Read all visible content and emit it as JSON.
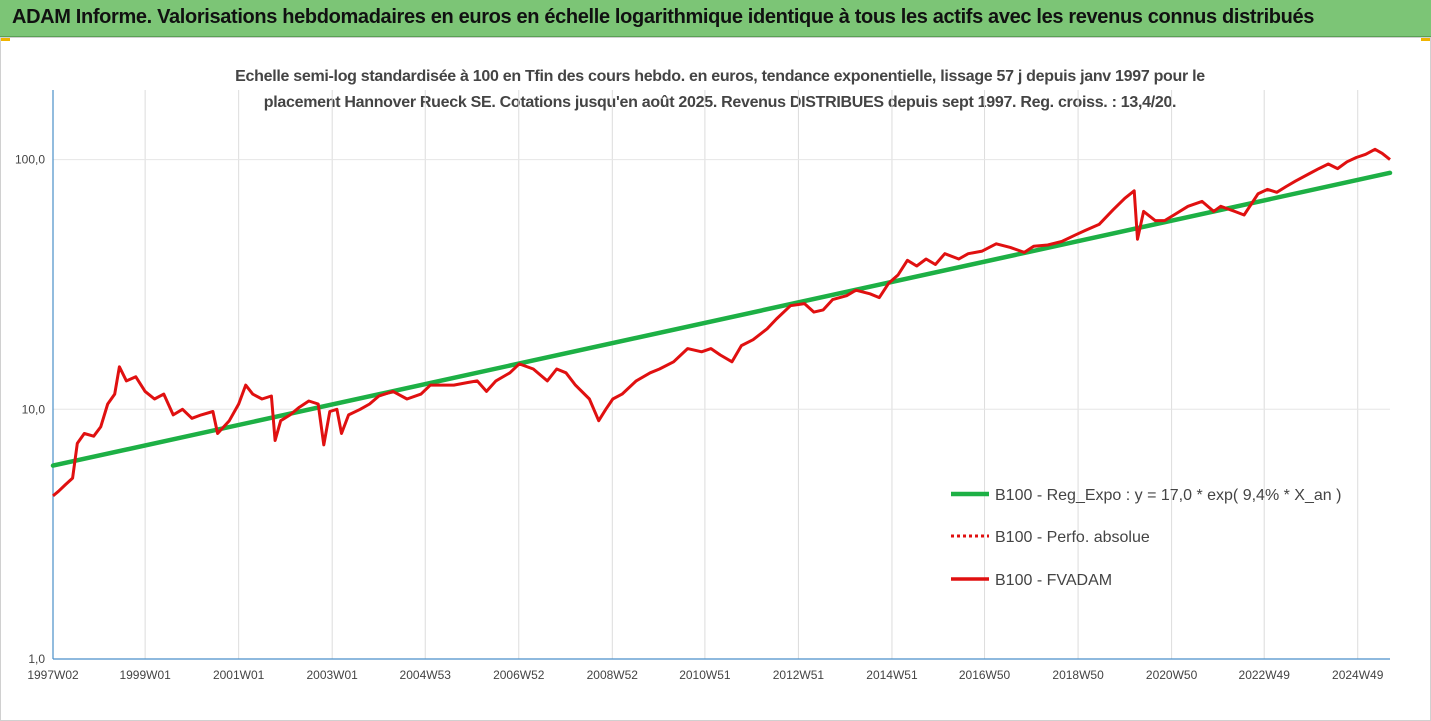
{
  "header": {
    "title": "ADAM Informe. Valorisations hebdomadaires en euros en échelle logarithmique identique à tous les actifs avec les revenus connus distribués"
  },
  "chart_data": {
    "type": "line",
    "title": "Echelle semi-log standardisée à 100 en Tfin des cours hebdo. en euros, tendance exponentielle, lissage 57 j depuis janv 1997 pour le placement Hannover Rueck SE. Cotations jusqu'en août 2025. Revenus DISTRIBUES depuis sept 1997. Reg. croiss. : 13,4/20.",
    "title_lines": [
      "Echelle semi-log standardisée à 100 en Tfin des cours hebdo. en euros, tendance exponentielle, lissage 57 j depuis janv 1997 pour le",
      "placement Hannover Rueck SE. Cotations jusqu'en août 2025. Revenus DISTRIBUES depuis sept 1997. Reg. croiss. : 13,4/20."
    ],
    "y_scale": "log",
    "ylim": [
      1,
      190
    ],
    "xlim": [
      1997.03,
      2025.62
    ],
    "y_ticks": [
      {
        "value": 1,
        "label": "1,0"
      },
      {
        "value": 10,
        "label": "10,0"
      },
      {
        "value": 100,
        "label": "100,0"
      }
    ],
    "x_ticks": [
      {
        "value": 1997.03,
        "label": "1997W02"
      },
      {
        "value": 1999.0,
        "label": "1999W01"
      },
      {
        "value": 2001.0,
        "label": "2001W01"
      },
      {
        "value": 2003.0,
        "label": "2003W01"
      },
      {
        "value": 2004.99,
        "label": "2004W53"
      },
      {
        "value": 2006.99,
        "label": "2006W52"
      },
      {
        "value": 2008.99,
        "label": "2008W52"
      },
      {
        "value": 2010.97,
        "label": "2010W51"
      },
      {
        "value": 2012.97,
        "label": "2012W51"
      },
      {
        "value": 2014.97,
        "label": "2014W51"
      },
      {
        "value": 2016.95,
        "label": "2016W50"
      },
      {
        "value": 2018.95,
        "label": "2018W50"
      },
      {
        "value": 2020.95,
        "label": "2020W50"
      },
      {
        "value": 2022.93,
        "label": "2022W49"
      },
      {
        "value": 2024.93,
        "label": "2024W49"
      }
    ],
    "grid": "vertical",
    "legend_position": "right",
    "colors": {
      "trend": "#1db045",
      "perf": "#e01010",
      "fvadam": "#e01010"
    },
    "series": [
      {
        "name": "B100 - Reg_Expo : y = 17,0 * exp( 9,4% *  X_an )",
        "style": "solid-green",
        "points": [
          [
            1997.03,
            5.95
          ],
          [
            2025.62,
            88.5
          ]
        ]
      },
      {
        "name": "B100 - Perfo. absolue",
        "style": "dotted-red",
        "points": []
      },
      {
        "name": "B100 - FVADAM",
        "style": "solid-red",
        "points": [
          [
            1997.03,
            4.5
          ],
          [
            1997.15,
            4.7
          ],
          [
            1997.3,
            5.0
          ],
          [
            1997.45,
            5.3
          ],
          [
            1997.55,
            7.3
          ],
          [
            1997.7,
            8.0
          ],
          [
            1997.9,
            7.8
          ],
          [
            1998.05,
            8.5
          ],
          [
            1998.2,
            10.5
          ],
          [
            1998.35,
            11.5
          ],
          [
            1998.45,
            14.8
          ],
          [
            1998.6,
            13.0
          ],
          [
            1998.8,
            13.5
          ],
          [
            1999.0,
            11.8
          ],
          [
            1999.2,
            11.0
          ],
          [
            1999.4,
            11.5
          ],
          [
            1999.6,
            9.5
          ],
          [
            1999.8,
            10.0
          ],
          [
            2000.0,
            9.2
          ],
          [
            2000.2,
            9.5
          ],
          [
            2000.45,
            9.8
          ],
          [
            2000.55,
            8.0
          ],
          [
            2000.8,
            9.0
          ],
          [
            2001.0,
            10.5
          ],
          [
            2001.15,
            12.5
          ],
          [
            2001.3,
            11.5
          ],
          [
            2001.5,
            11.0
          ],
          [
            2001.7,
            11.3
          ],
          [
            2001.78,
            7.5
          ],
          [
            2001.9,
            9.0
          ],
          [
            2002.1,
            9.5
          ],
          [
            2002.3,
            10.2
          ],
          [
            2002.5,
            10.8
          ],
          [
            2002.7,
            10.5
          ],
          [
            2002.82,
            7.2
          ],
          [
            2002.95,
            9.8
          ],
          [
            2003.1,
            10.0
          ],
          [
            2003.2,
            8.0
          ],
          [
            2003.35,
            9.5
          ],
          [
            2003.6,
            10.0
          ],
          [
            2003.8,
            10.5
          ],
          [
            2004.0,
            11.3
          ],
          [
            2004.3,
            11.8
          ],
          [
            2004.6,
            11.0
          ],
          [
            2004.9,
            11.5
          ],
          [
            2005.1,
            12.5
          ],
          [
            2005.3,
            12.5
          ],
          [
            2005.6,
            12.5
          ],
          [
            2005.9,
            12.8
          ],
          [
            2006.1,
            13.0
          ],
          [
            2006.3,
            11.8
          ],
          [
            2006.5,
            13.0
          ],
          [
            2006.8,
            14.0
          ],
          [
            2007.0,
            15.2
          ],
          [
            2007.3,
            14.5
          ],
          [
            2007.6,
            13.0
          ],
          [
            2007.8,
            14.5
          ],
          [
            2008.0,
            14.0
          ],
          [
            2008.2,
            12.5
          ],
          [
            2008.5,
            11.0
          ],
          [
            2008.7,
            9.0
          ],
          [
            2008.85,
            10.0
          ],
          [
            2009.0,
            11.0
          ],
          [
            2009.2,
            11.5
          ],
          [
            2009.5,
            13.0
          ],
          [
            2009.8,
            14.0
          ],
          [
            2010.0,
            14.5
          ],
          [
            2010.3,
            15.5
          ],
          [
            2010.6,
            17.5
          ],
          [
            2010.9,
            17.0
          ],
          [
            2011.1,
            17.5
          ],
          [
            2011.3,
            16.5
          ],
          [
            2011.55,
            15.5
          ],
          [
            2011.75,
            18.0
          ],
          [
            2012.0,
            19.0
          ],
          [
            2012.3,
            21.0
          ],
          [
            2012.5,
            23.0
          ],
          [
            2012.8,
            26.0
          ],
          [
            2013.1,
            26.5
          ],
          [
            2013.3,
            24.5
          ],
          [
            2013.5,
            25.0
          ],
          [
            2013.7,
            27.5
          ],
          [
            2014.0,
            28.5
          ],
          [
            2014.2,
            30.0
          ],
          [
            2014.5,
            29.0
          ],
          [
            2014.7,
            28.0
          ],
          [
            2014.9,
            32.0
          ],
          [
            2015.1,
            34.5
          ],
          [
            2015.3,
            39.5
          ],
          [
            2015.5,
            37.5
          ],
          [
            2015.7,
            40.0
          ],
          [
            2015.9,
            38.0
          ],
          [
            2016.1,
            42.0
          ],
          [
            2016.4,
            40.0
          ],
          [
            2016.6,
            42.0
          ],
          [
            2016.9,
            43.0
          ],
          [
            2017.2,
            46.0
          ],
          [
            2017.5,
            44.5
          ],
          [
            2017.8,
            42.5
          ],
          [
            2018.0,
            45.0
          ],
          [
            2018.3,
            45.5
          ],
          [
            2018.6,
            47.0
          ],
          [
            2018.9,
            50.0
          ],
          [
            2019.1,
            52.0
          ],
          [
            2019.4,
            55.0
          ],
          [
            2019.7,
            63.0
          ],
          [
            2019.95,
            70.0
          ],
          [
            2020.15,
            75.0
          ],
          [
            2020.22,
            48.0
          ],
          [
            2020.35,
            62.0
          ],
          [
            2020.6,
            57.0
          ],
          [
            2020.8,
            57.0
          ],
          [
            2021.0,
            60.0
          ],
          [
            2021.3,
            65.0
          ],
          [
            2021.6,
            68.0
          ],
          [
            2021.85,
            62.0
          ],
          [
            2022.0,
            65.0
          ],
          [
            2022.3,
            62.0
          ],
          [
            2022.5,
            60.0
          ],
          [
            2022.8,
            73.0
          ],
          [
            2023.0,
            76.0
          ],
          [
            2023.2,
            74.0
          ],
          [
            2023.4,
            78.0
          ],
          [
            2023.6,
            82.0
          ],
          [
            2023.9,
            88.0
          ],
          [
            2024.1,
            92.0
          ],
          [
            2024.3,
            96.0
          ],
          [
            2024.5,
            92.0
          ],
          [
            2024.7,
            98.0
          ],
          [
            2024.9,
            102.0
          ],
          [
            2025.1,
            105.0
          ],
          [
            2025.3,
            110.0
          ],
          [
            2025.45,
            106.0
          ],
          [
            2025.62,
            100.0
          ]
        ]
      }
    ]
  }
}
